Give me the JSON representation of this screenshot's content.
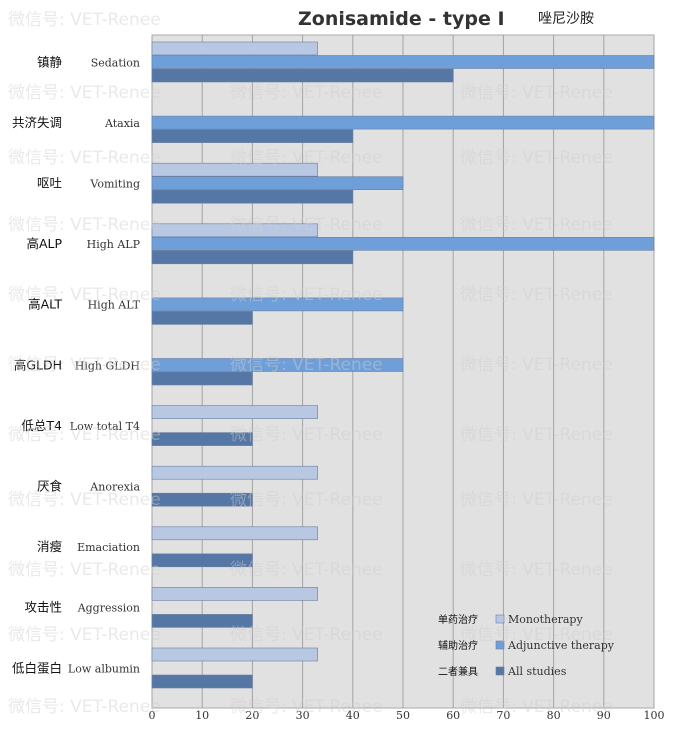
{
  "watermark": "微信号: VET-Renee",
  "chart_data": {
    "type": "bar",
    "orientation": "horizontal",
    "title": "Zonisamide - type I",
    "subtitle": "唑尼沙胺",
    "xlim": [
      0,
      100
    ],
    "xticks": [
      0,
      10,
      20,
      30,
      40,
      50,
      60,
      70,
      80,
      90,
      100
    ],
    "grid": true,
    "legend_position": "bottom-right",
    "categories": [
      {
        "zh": "镇静",
        "en": "Sedation"
      },
      {
        "zh": "共济失调",
        "en": "Ataxia"
      },
      {
        "zh": "呕吐",
        "en": "Vomiting"
      },
      {
        "zh": "高ALP",
        "en": "High ALP"
      },
      {
        "zh": "高ALT",
        "en": "High ALT"
      },
      {
        "zh": "高GLDH",
        "en": "High GLDH"
      },
      {
        "zh": "低总T4",
        "en": "Low total T4"
      },
      {
        "zh": "厌食",
        "en": "Anorexia"
      },
      {
        "zh": "消瘦",
        "en": "Emaciation"
      },
      {
        "zh": "攻击性",
        "en": "Aggression"
      },
      {
        "zh": "低白蛋白",
        "en": "Low albumin"
      }
    ],
    "series": [
      {
        "name": "Monotherapy",
        "name_zh": "单药治疗",
        "color": "#b8c8e2",
        "values": [
          33,
          0,
          33,
          33,
          0,
          0,
          33,
          33,
          33,
          33,
          33
        ]
      },
      {
        "name": "Adjunctive therapy",
        "name_zh": "辅助治疗",
        "color": "#6f9fd8",
        "values": [
          100,
          100,
          50,
          100,
          50,
          50,
          0,
          0,
          0,
          0,
          0
        ]
      },
      {
        "name": "All studies",
        "name_zh": "二者兼具",
        "color": "#5577a6",
        "values": [
          60,
          40,
          40,
          40,
          20,
          20,
          20,
          20,
          20,
          20,
          20
        ]
      }
    ]
  }
}
